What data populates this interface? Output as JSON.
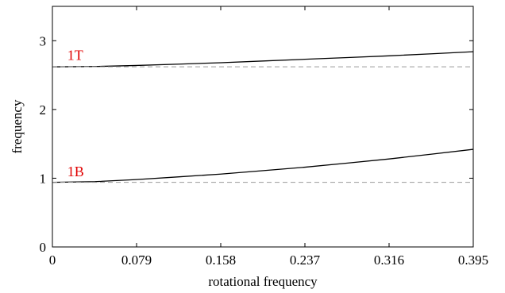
{
  "chart_data": {
    "type": "line",
    "xlabel": "rotational frequency",
    "ylabel": "frequency",
    "xlim": [
      0,
      0.395
    ],
    "ylim": [
      0,
      3.5
    ],
    "x_ticks": [
      0,
      0.079,
      0.158,
      0.237,
      0.316,
      0.395
    ],
    "x_tick_labels": [
      "0",
      "0.079",
      "0.158",
      "0.237",
      "0.316",
      "0.395"
    ],
    "y_ticks": [
      0,
      1,
      2,
      3
    ],
    "y_tick_labels": [
      "0",
      "1",
      "2",
      "3"
    ],
    "grid": false,
    "series": [
      {
        "x": [
          0,
          0.04,
          0.079,
          0.119,
          0.158,
          0.198,
          0.237,
          0.277,
          0.316,
          0.356,
          0.395
        ],
        "y": [
          2.62,
          2.625,
          2.64,
          2.66,
          2.68,
          2.705,
          2.73,
          2.755,
          2.78,
          2.81,
          2.84
        ],
        "color": "#000000",
        "style": "solid"
      },
      {
        "x": [
          0,
          0.04,
          0.079,
          0.119,
          0.158,
          0.198,
          0.237,
          0.277,
          0.316,
          0.356,
          0.395
        ],
        "y": [
          2.62,
          2.62,
          2.62,
          2.62,
          2.62,
          2.62,
          2.62,
          2.62,
          2.62,
          2.62,
          2.62
        ],
        "color": "#999999",
        "style": "dashed"
      },
      {
        "x": [
          0,
          0.04,
          0.079,
          0.119,
          0.158,
          0.198,
          0.237,
          0.277,
          0.316,
          0.356,
          0.395
        ],
        "y": [
          0.94,
          0.95,
          0.98,
          1.02,
          1.06,
          1.11,
          1.16,
          1.22,
          1.28,
          1.35,
          1.42
        ],
        "color": "#000000",
        "style": "solid"
      },
      {
        "x": [
          0,
          0.04,
          0.079,
          0.119,
          0.158,
          0.198,
          0.237,
          0.277,
          0.316,
          0.356,
          0.395
        ],
        "y": [
          0.94,
          0.94,
          0.94,
          0.94,
          0.94,
          0.94,
          0.94,
          0.94,
          0.94,
          0.94,
          0.94
        ],
        "color": "#999999",
        "style": "dashed"
      }
    ],
    "annotations": [
      {
        "text": "1T",
        "x": 0.014,
        "y": 2.72,
        "color": "#e00000"
      },
      {
        "text": "1B",
        "x": 0.014,
        "y": 1.03,
        "color": "#e00000"
      }
    ]
  }
}
